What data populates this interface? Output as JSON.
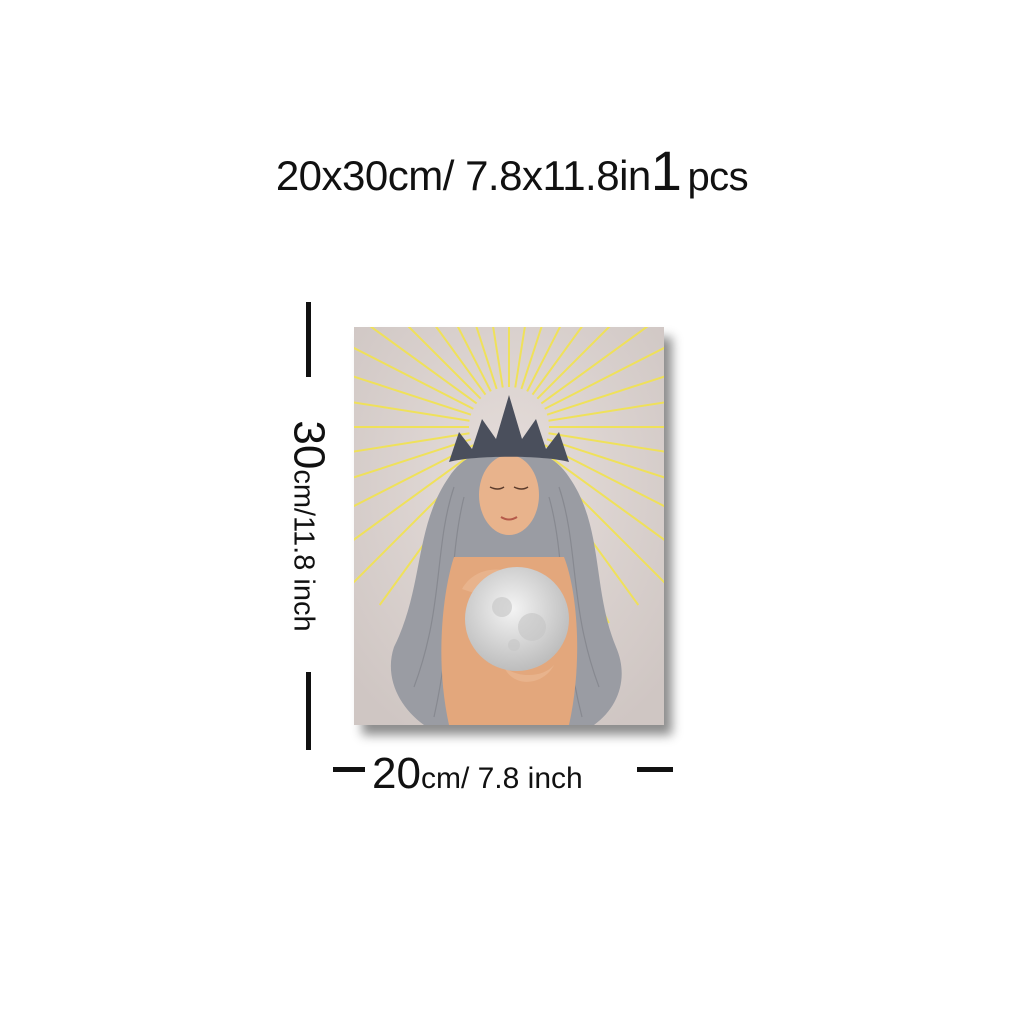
{
  "title": {
    "size": "20x30cm/ 7.8x11.8in",
    "quantity": "1",
    "unit": "pcs"
  },
  "height_dimension": {
    "value": "30",
    "unit_text": "cm/11.8 inch"
  },
  "width_dimension": {
    "value": "20",
    "unit_text": "cm/ 7.8 inch"
  },
  "colors": {
    "ink": "#111111",
    "canvas": "#d9d0cc",
    "rays": "#f2e34e",
    "hair": "#9a9ca3",
    "crown": "#4a4f5c",
    "skin": "#e3a77c",
    "moon": "#dcdcdc"
  }
}
